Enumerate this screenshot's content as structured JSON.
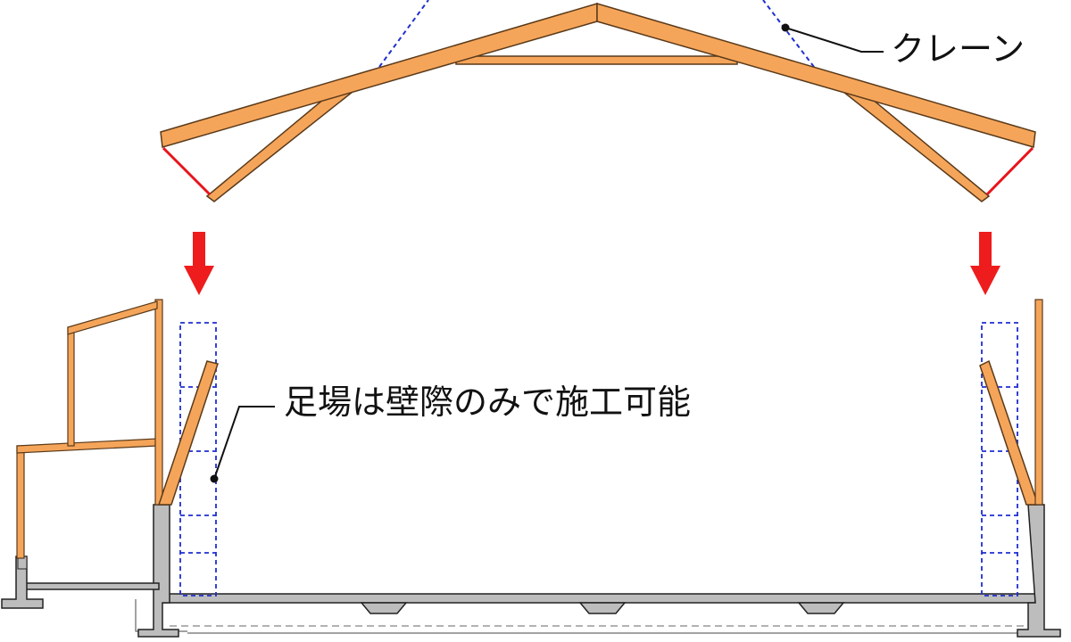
{
  "labels": {
    "crane": "クレーン",
    "scaffold": "足場は壁際のみで施工可能"
  },
  "colors": {
    "timber_fill": "#F5A55A",
    "timber_stroke": "#5A3A1A",
    "concrete_fill": "#BDBDBD",
    "concrete_stroke": "#222222",
    "scaffold_line": "#1F2FD0",
    "crane_line": "#1F2FD0",
    "arrow": "#EE1C1C",
    "connector": "#E8141B",
    "text": "#111111"
  },
  "icons": {
    "left_arrow": "down-arrow-icon",
    "right_arrow": "down-arrow-icon"
  }
}
